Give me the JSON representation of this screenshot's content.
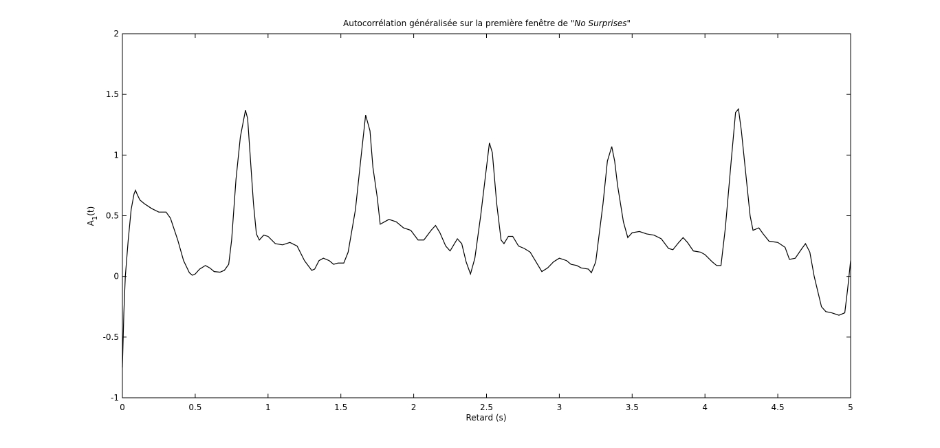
{
  "chart_data": {
    "type": "line",
    "title": [
      "Autocorrélation généralisée sur la première fenêtre de \"",
      "No Surprises",
      "\""
    ],
    "xlabel": "Retard (s)",
    "ylabel": [
      "A",
      "1",
      "(t)"
    ],
    "xlim": [
      0,
      5
    ],
    "ylim": [
      -1,
      2
    ],
    "xticks": [
      0,
      0.5,
      1,
      1.5,
      2,
      2.5,
      3,
      3.5,
      4,
      4.5,
      5
    ],
    "yticks": [
      -1,
      -0.5,
      0,
      0.5,
      1,
      1.5,
      2
    ],
    "grid": false,
    "series": [
      {
        "color": "#000000",
        "x": [
          0,
          0.01,
          0.02,
          0.04,
          0.06,
          0.08,
          0.09,
          0.1,
          0.12,
          0.15,
          0.2,
          0.25,
          0.3,
          0.33,
          0.38,
          0.42,
          0.46,
          0.48,
          0.5,
          0.53,
          0.57,
          0.6,
          0.63,
          0.67,
          0.7,
          0.73,
          0.75,
          0.78,
          0.81,
          0.845,
          0.86,
          0.88,
          0.9,
          0.92,
          0.94,
          0.97,
          1.0,
          1.05,
          1.1,
          1.15,
          1.2,
          1.25,
          1.3,
          1.32,
          1.35,
          1.38,
          1.42,
          1.45,
          1.48,
          1.52,
          1.55,
          1.6,
          1.64,
          1.67,
          1.7,
          1.72,
          1.75,
          1.77,
          1.8,
          1.83,
          1.88,
          1.93,
          1.98,
          2.03,
          2.07,
          2.12,
          2.15,
          2.18,
          2.22,
          2.25,
          2.28,
          2.3,
          2.33,
          2.36,
          2.39,
          2.42,
          2.46,
          2.5,
          2.52,
          2.54,
          2.57,
          2.6,
          2.62,
          2.65,
          2.68,
          2.72,
          2.76,
          2.8,
          2.85,
          2.88,
          2.92,
          2.96,
          3.0,
          3.05,
          3.08,
          3.12,
          3.15,
          3.2,
          3.22,
          3.25,
          3.3,
          3.33,
          3.36,
          3.38,
          3.4,
          3.44,
          3.47,
          3.5,
          3.55,
          3.6,
          3.65,
          3.7,
          3.75,
          3.78,
          3.82,
          3.85,
          3.88,
          3.92,
          3.97,
          4.0,
          4.05,
          4.08,
          4.11,
          4.14,
          4.18,
          4.21,
          4.23,
          4.25,
          4.28,
          4.31,
          4.33,
          4.37,
          4.4,
          4.44,
          4.5,
          4.55,
          4.58,
          4.62,
          4.66,
          4.69,
          4.72,
          4.75,
          4.78,
          4.8,
          4.83,
          4.87,
          4.92,
          4.96,
          4.98,
          5.0
        ],
        "values": [
          -0.75,
          -0.3,
          0.0,
          0.3,
          0.55,
          0.68,
          0.71,
          0.68,
          0.63,
          0.6,
          0.56,
          0.53,
          0.53,
          0.48,
          0.3,
          0.13,
          0.03,
          0.01,
          0.02,
          0.06,
          0.09,
          0.07,
          0.04,
          0.035,
          0.05,
          0.1,
          0.3,
          0.8,
          1.15,
          1.37,
          1.3,
          0.95,
          0.6,
          0.35,
          0.3,
          0.34,
          0.33,
          0.27,
          0.26,
          0.28,
          0.25,
          0.13,
          0.05,
          0.06,
          0.13,
          0.15,
          0.13,
          0.1,
          0.11,
          0.11,
          0.2,
          0.55,
          1.0,
          1.33,
          1.2,
          0.9,
          0.65,
          0.43,
          0.45,
          0.47,
          0.45,
          0.4,
          0.38,
          0.3,
          0.3,
          0.38,
          0.42,
          0.36,
          0.25,
          0.21,
          0.27,
          0.31,
          0.27,
          0.12,
          0.02,
          0.15,
          0.5,
          0.9,
          1.1,
          1.02,
          0.6,
          0.3,
          0.27,
          0.33,
          0.33,
          0.25,
          0.23,
          0.2,
          0.1,
          0.04,
          0.07,
          0.12,
          0.15,
          0.13,
          0.1,
          0.09,
          0.07,
          0.06,
          0.03,
          0.12,
          0.6,
          0.95,
          1.07,
          0.95,
          0.75,
          0.45,
          0.32,
          0.36,
          0.37,
          0.35,
          0.34,
          0.31,
          0.23,
          0.22,
          0.28,
          0.32,
          0.28,
          0.21,
          0.2,
          0.18,
          0.12,
          0.09,
          0.09,
          0.4,
          0.95,
          1.35,
          1.38,
          1.2,
          0.85,
          0.5,
          0.38,
          0.4,
          0.35,
          0.29,
          0.28,
          0.24,
          0.14,
          0.15,
          0.22,
          0.27,
          0.2,
          0.0,
          -0.15,
          -0.25,
          -0.29,
          -0.3,
          -0.32,
          -0.3,
          -0.1,
          0.13
        ]
      }
    ]
  }
}
